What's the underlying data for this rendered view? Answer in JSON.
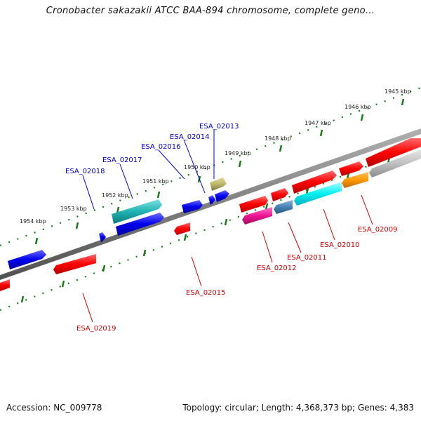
{
  "title": "Cronobacter sakazakii ATCC BAA-894 chromosome, complete geno...",
  "footer": {
    "accession": "Accession: NC_009778",
    "summary": "Topology: circular; Length: 4,368,373 bp; Genes: 4,383"
  },
  "kbp_labels": [
    "1945 kbp",
    "1946 kbp",
    "1947 kbp",
    "1948 kbp",
    "1949 kbp",
    "1950 kbp",
    "1951 kbp",
    "1952 kbp",
    "1953 kbp",
    "1954 kbp"
  ],
  "gene_labels": [
    "ESA_02009",
    "ESA_02010",
    "ESA_02011",
    "ESA_02012",
    "ESA_02013",
    "ESA_02014",
    "ESA_02015",
    "ESA_02016",
    "ESA_02017",
    "ESA_02018",
    "ESA_02019"
  ],
  "colors": {
    "forward_label": "#0000cc",
    "reverse_label": "#cc0000",
    "backbone": "#808080",
    "tick": "#1a7a1a"
  }
}
